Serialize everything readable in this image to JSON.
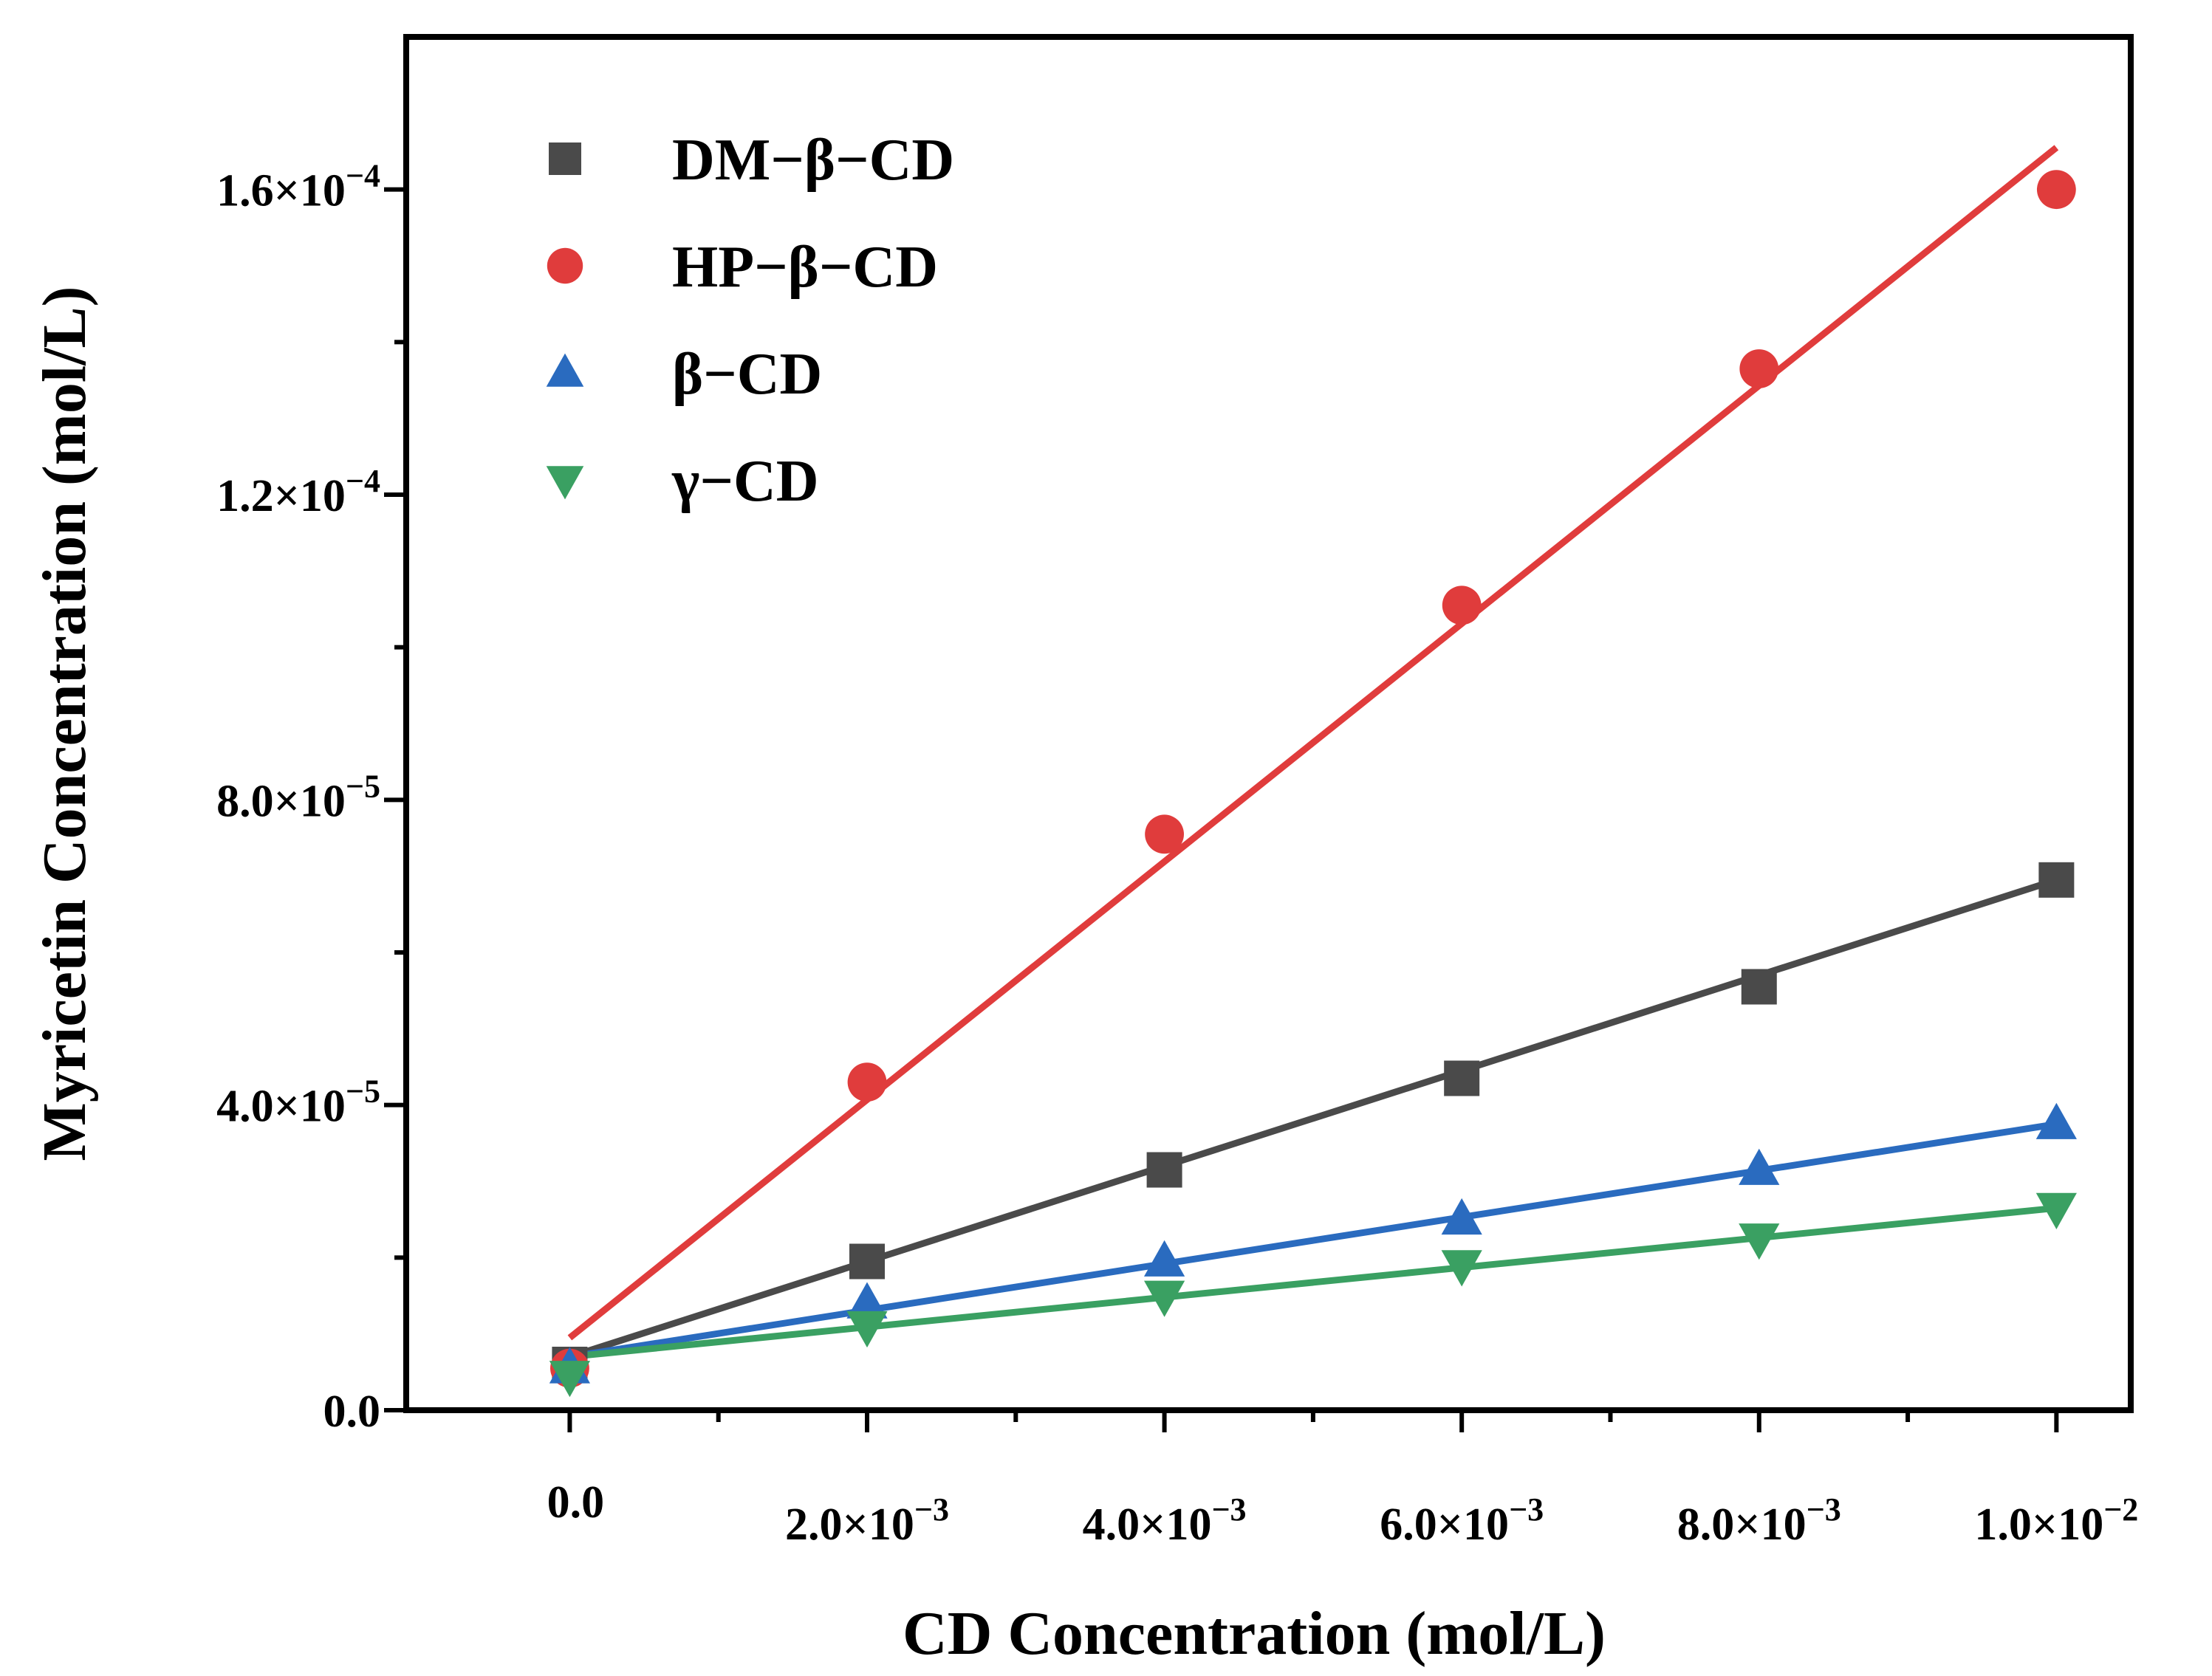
{
  "chart_data": {
    "type": "scatter",
    "title": "",
    "xlabel": "CD Concentration (mol/L)",
    "ylabel": "Myricetin Concentration (mol/L)",
    "xlim": [
      -0.0011,
      0.0105
    ],
    "ylim": [
      0,
      0.00018
    ],
    "x_ticks": [
      0,
      0.002,
      0.004,
      0.006,
      0.008,
      0.01
    ],
    "x_tick_labels": [
      {
        "mant": "0.0",
        "exp": ""
      },
      {
        "mant": "2.0×10",
        "exp": "−3"
      },
      {
        "mant": "4.0×10",
        "exp": "−3"
      },
      {
        "mant": "6.0×10",
        "exp": "−3"
      },
      {
        "mant": "8.0×10",
        "exp": "−3"
      },
      {
        "mant": "1.0×10",
        "exp": "−2"
      }
    ],
    "y_ticks": [
      0,
      4e-05,
      8e-05,
      0.00012,
      0.00016
    ],
    "y_tick_labels": [
      {
        "mant": "0.0",
        "exp": ""
      },
      {
        "mant": "4.0×10",
        "exp": "−5"
      },
      {
        "mant": "8.0×10",
        "exp": "−5"
      },
      {
        "mant": "1.2×10",
        "exp": "−4"
      },
      {
        "mant": "1.6×10",
        "exp": "−4"
      }
    ],
    "legend_position": "top-left",
    "grid": false,
    "series": [
      {
        "name": "DM−β−CD",
        "key": "dm-beta-cd",
        "color": "#4a4a4a",
        "marker": "square",
        "x": [
          0,
          0.002,
          0.004,
          0.006,
          0.008,
          0.01
        ],
        "values": [
          6e-06,
          1.95e-05,
          3.15e-05,
          4.35e-05,
          5.55e-05,
          6.95e-05
        ],
        "fit": {
          "x": [
            0,
            0.01
          ],
          "y": [
            7e-06,
            6.95e-05
          ]
        }
      },
      {
        "name": "HP−β−CD",
        "key": "hp-beta-cd",
        "color": "#e03c3c",
        "marker": "circle",
        "x": [
          0,
          0.002,
          0.004,
          0.006,
          0.008,
          0.01
        ],
        "values": [
          5.5e-06,
          4.3e-05,
          7.55e-05,
          0.0001055,
          0.0001365,
          0.00016
        ],
        "fit": {
          "x": [
            0,
            0.01
          ],
          "y": [
            9.5e-06,
            0.0001655
          ]
        }
      },
      {
        "name": "β−CD",
        "key": "beta-cd",
        "color": "#2a6bbf",
        "marker": "triangle-up",
        "x": [
          0,
          0.002,
          0.004,
          0.006,
          0.008,
          0.01
        ],
        "values": [
          5.5e-06,
          1.4e-05,
          1.95e-05,
          2.5e-05,
          3.15e-05,
          3.75e-05
        ],
        "fit": {
          "x": [
            0,
            0.01
          ],
          "y": [
            7e-06,
            3.75e-05
          ]
        }
      },
      {
        "name": "γ−CD",
        "key": "gamma-cd",
        "color": "#3aa062",
        "marker": "triangle-down",
        "x": [
          0,
          0.002,
          0.004,
          0.006,
          0.008,
          0.01
        ],
        "values": [
          4.5e-06,
          1.1e-05,
          1.5e-05,
          1.9e-05,
          2.25e-05,
          2.65e-05
        ],
        "fit": {
          "x": [
            0,
            0.01
          ],
          "y": [
            7e-06,
            2.65e-05
          ]
        }
      }
    ]
  }
}
